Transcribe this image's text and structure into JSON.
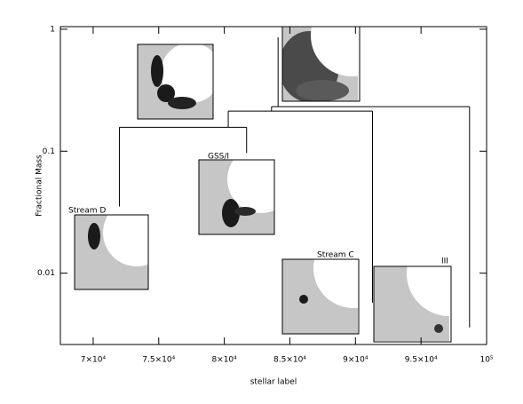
{
  "chart_data": {
    "type": "dendrogram",
    "x_label": "stellar label",
    "y_label": "Fractional Mass",
    "xlim": [
      67500,
      100000
    ],
    "ylim": [
      0.0026,
      1.05
    ],
    "y_log": true,
    "xticks": [
      {
        "value": 70000,
        "label": "7×10⁴"
      },
      {
        "value": 75000,
        "label": "7.5×10⁴"
      },
      {
        "value": 80000,
        "label": "8×10⁴"
      },
      {
        "value": 85000,
        "label": "8.5×10⁴"
      },
      {
        "value": 90000,
        "label": "9×10⁴"
      },
      {
        "value": 95000,
        "label": "9.5×10⁴"
      },
      {
        "value": 100000,
        "label": "10⁵"
      }
    ],
    "yticks": [
      {
        "value": 0.01,
        "label": "0.01"
      },
      {
        "value": 0.1,
        "label": "0.1"
      },
      1
    ],
    "segments": [
      [
        72000,
        0.0352,
        72000,
        0.157
      ],
      [
        72000,
        0.157,
        81700,
        0.157
      ],
      [
        81700,
        0.0967,
        81700,
        0.157
      ],
      [
        80300,
        0.157,
        80300,
        0.213
      ],
      [
        80300,
        0.213,
        91300,
        0.213
      ],
      [
        91300,
        0.00574,
        91300,
        0.213
      ],
      [
        83600,
        0.213,
        83600,
        0.232
      ],
      [
        83600,
        0.232,
        98700,
        0.232
      ],
      [
        98700,
        0.00359,
        98700,
        0.232
      ],
      [
        84100,
        0.232,
        84100,
        0.86
      ]
    ],
    "color": "#000000",
    "annotations": [
      "Stream D",
      "GSS/I",
      "Stream C",
      "III"
    ]
  }
}
